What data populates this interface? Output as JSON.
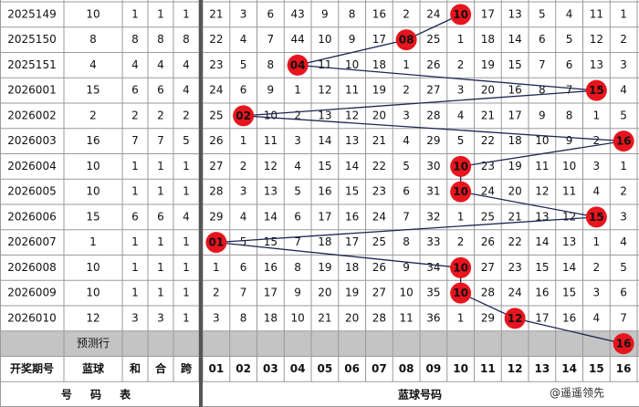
{
  "rows": [
    {
      "period": "2025149",
      "blue": "10",
      "sum": "1",
      "he": "1",
      "span": "1",
      "cells": [
        "21",
        "3",
        "6",
        "43",
        "9",
        "8",
        "16",
        "2",
        "24",
        "10",
        "17",
        "13",
        "5",
        "4",
        "11",
        "1"
      ]
    },
    {
      "period": "2025150",
      "blue": "8",
      "sum": "8",
      "he": "8",
      "span": "8",
      "cells": [
        "22",
        "4",
        "7",
        "44",
        "10",
        "9",
        "17",
        "08",
        "25",
        "1",
        "18",
        "14",
        "6",
        "5",
        "12",
        "2"
      ]
    },
    {
      "period": "2025151",
      "blue": "4",
      "sum": "4",
      "he": "4",
      "span": "4",
      "cells": [
        "23",
        "5",
        "8",
        "04",
        "11",
        "10",
        "18",
        "1",
        "26",
        "2",
        "19",
        "15",
        "7",
        "6",
        "13",
        "3"
      ]
    },
    {
      "period": "2026001",
      "blue": "15",
      "sum": "6",
      "he": "6",
      "span": "4",
      "cells": [
        "24",
        "6",
        "9",
        "1",
        "12",
        "11",
        "19",
        "2",
        "27",
        "3",
        "20",
        "16",
        "8",
        "7",
        "15",
        "4"
      ]
    },
    {
      "period": "2026002",
      "blue": "2",
      "sum": "2",
      "he": "2",
      "span": "2",
      "cells": [
        "25",
        "02",
        "10",
        "2",
        "13",
        "12",
        "20",
        "3",
        "28",
        "4",
        "21",
        "17",
        "9",
        "8",
        "1",
        "5"
      ]
    },
    {
      "period": "2026003",
      "blue": "16",
      "sum": "7",
      "he": "7",
      "span": "5",
      "cells": [
        "26",
        "1",
        "11",
        "3",
        "14",
        "13",
        "21",
        "4",
        "29",
        "5",
        "22",
        "18",
        "10",
        "9",
        "2",
        "16"
      ]
    },
    {
      "period": "2026004",
      "blue": "10",
      "sum": "1",
      "he": "1",
      "span": "1",
      "cells": [
        "27",
        "2",
        "12",
        "4",
        "15",
        "14",
        "22",
        "5",
        "30",
        "10",
        "23",
        "19",
        "11",
        "10",
        "3",
        "1"
      ]
    },
    {
      "period": "2026005",
      "blue": "10",
      "sum": "1",
      "he": "1",
      "span": "1",
      "cells": [
        "28",
        "3",
        "13",
        "5",
        "16",
        "15",
        "23",
        "6",
        "31",
        "10",
        "24",
        "20",
        "12",
        "11",
        "4",
        "2"
      ]
    },
    {
      "period": "2026006",
      "blue": "15",
      "sum": "6",
      "he": "6",
      "span": "4",
      "cells": [
        "29",
        "4",
        "14",
        "6",
        "17",
        "16",
        "24",
        "7",
        "32",
        "1",
        "25",
        "21",
        "13",
        "12",
        "15",
        "3"
      ]
    },
    {
      "period": "2026007",
      "blue": "1",
      "sum": "1",
      "he": "1",
      "span": "1",
      "cells": [
        "01",
        "5",
        "15",
        "7",
        "18",
        "17",
        "25",
        "8",
        "33",
        "2",
        "26",
        "22",
        "14",
        "13",
        "1",
        "4"
      ]
    },
    {
      "period": "2026008",
      "blue": "10",
      "sum": "1",
      "he": "1",
      "span": "1",
      "cells": [
        "1",
        "6",
        "16",
        "8",
        "19",
        "18",
        "26",
        "9",
        "34",
        "10",
        "27",
        "23",
        "15",
        "14",
        "2",
        "5"
      ]
    },
    {
      "period": "2026009",
      "blue": "10",
      "sum": "1",
      "he": "1",
      "span": "1",
      "cells": [
        "2",
        "7",
        "17",
        "9",
        "20",
        "19",
        "27",
        "10",
        "35",
        "10",
        "28",
        "24",
        "16",
        "15",
        "3",
        "6"
      ]
    },
    {
      "period": "2026010",
      "blue": "12",
      "sum": "3",
      "he": "3",
      "span": "1",
      "cells": [
        "3",
        "8",
        "18",
        "10",
        "21",
        "20",
        "28",
        "11",
        "36",
        "1",
        "29",
        "12",
        "17",
        "16",
        "4",
        "7"
      ]
    }
  ],
  "prediction": {
    "label": "预测行",
    "ball": "16"
  },
  "header": {
    "period": "开奖期号",
    "blue": "蓝球",
    "sum": "和",
    "he": "合",
    "span": "跨",
    "numbers": [
      "01",
      "02",
      "03",
      "04",
      "05",
      "06",
      "07",
      "08",
      "09",
      "10",
      "11",
      "12",
      "13",
      "14",
      "15",
      "16"
    ]
  },
  "footer": {
    "left": "号 码 表",
    "right": "蓝球号码"
  },
  "watermark": "@遥遥领先"
}
